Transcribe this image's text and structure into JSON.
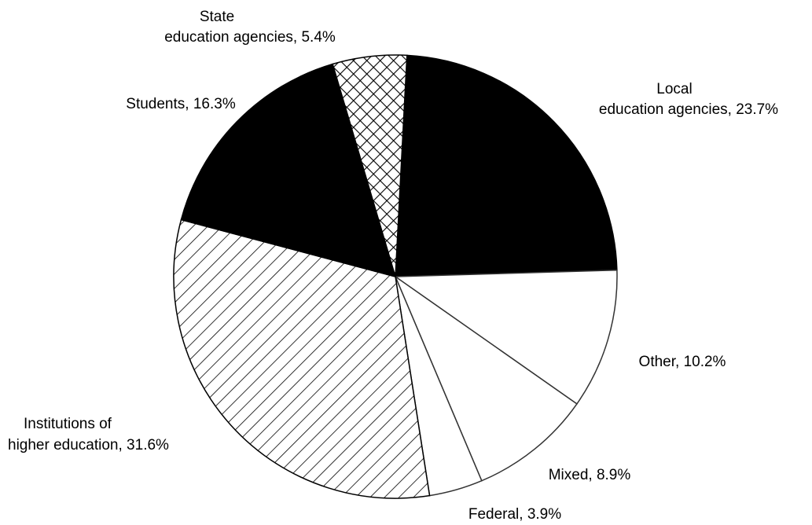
{
  "chart_data": {
    "type": "pie",
    "labels": [
      [
        "Local",
        "education agencies,  23.7%"
      ],
      [
        "Other,  10.2%"
      ],
      [
        "Mixed,  8.9%"
      ],
      [
        "Federal,  3.9%"
      ],
      [
        "Institutions of",
        "higher education,  31.6%"
      ],
      [
        "Students,  16.3%"
      ],
      [
        "State",
        "education agencies,  5.4%"
      ]
    ],
    "values": [
      23.7,
      10.2,
      8.9,
      3.9,
      31.6,
      16.3,
      5.4
    ],
    "fills": [
      "black",
      "white",
      "white",
      "white",
      "hatch",
      "black",
      "crosshatch"
    ]
  }
}
